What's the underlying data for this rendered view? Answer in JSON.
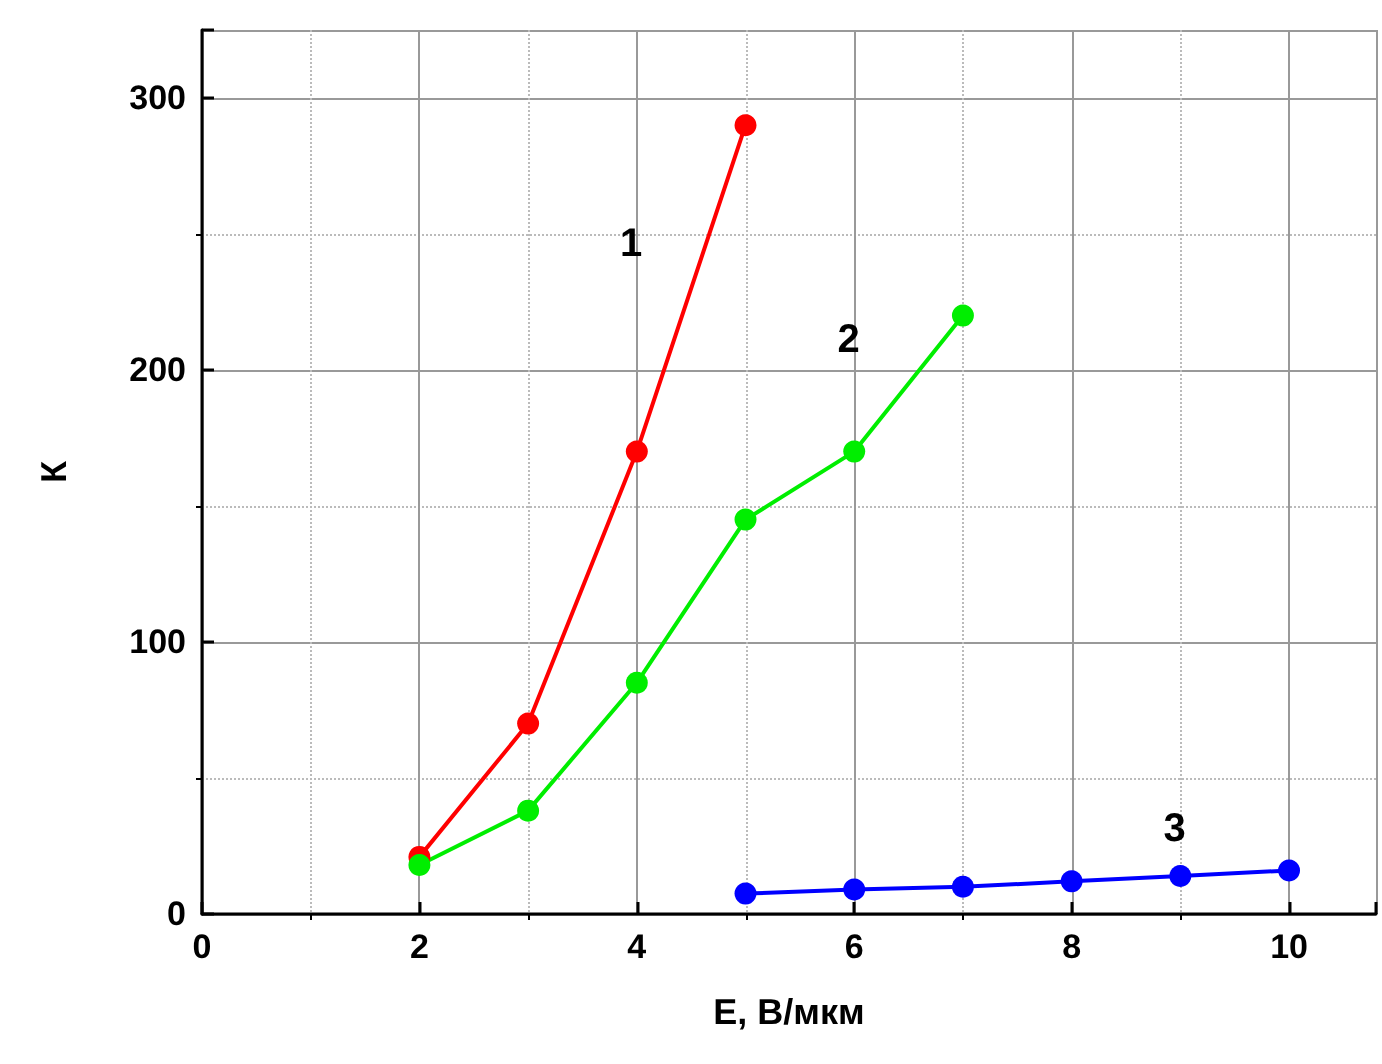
{
  "chart_data": {
    "type": "line",
    "xlabel": "E, В/мкм",
    "ylabel": "К",
    "xlim": [
      0,
      10.8
    ],
    "xticks": [
      0,
      {
        "value": 1,
        "label": null
      },
      2,
      {
        "value": 3,
        "label": null
      },
      4,
      {
        "value": 5,
        "label": null
      },
      6,
      {
        "value": 7,
        "label": null
      },
      8,
      {
        "value": 9,
        "label": null
      },
      10
    ],
    "ylim": [
      0,
      325
    ],
    "yticks": [
      0,
      {
        "value": 50,
        "label": null
      },
      100,
      {
        "value": 150,
        "label": null
      },
      200,
      {
        "value": 250,
        "label": null
      },
      300
    ],
    "grid": true,
    "marker": "circle",
    "line_style": "solid",
    "series": [
      {
        "name": "1",
        "color": "#ff0000",
        "x": [
          2,
          3,
          4,
          5
        ],
        "values": [
          21,
          70,
          170,
          290
        ]
      },
      {
        "name": "2",
        "color": "#00ee00",
        "x": [
          2,
          3,
          4,
          5,
          6,
          7
        ],
        "values": [
          18,
          38,
          85,
          145,
          170,
          220
        ]
      },
      {
        "name": "3",
        "color": "#0000ff",
        "x": [
          5,
          6,
          7,
          8,
          9,
          10
        ],
        "values": [
          7.5,
          9,
          10,
          12,
          14,
          16
        ]
      }
    ]
  }
}
